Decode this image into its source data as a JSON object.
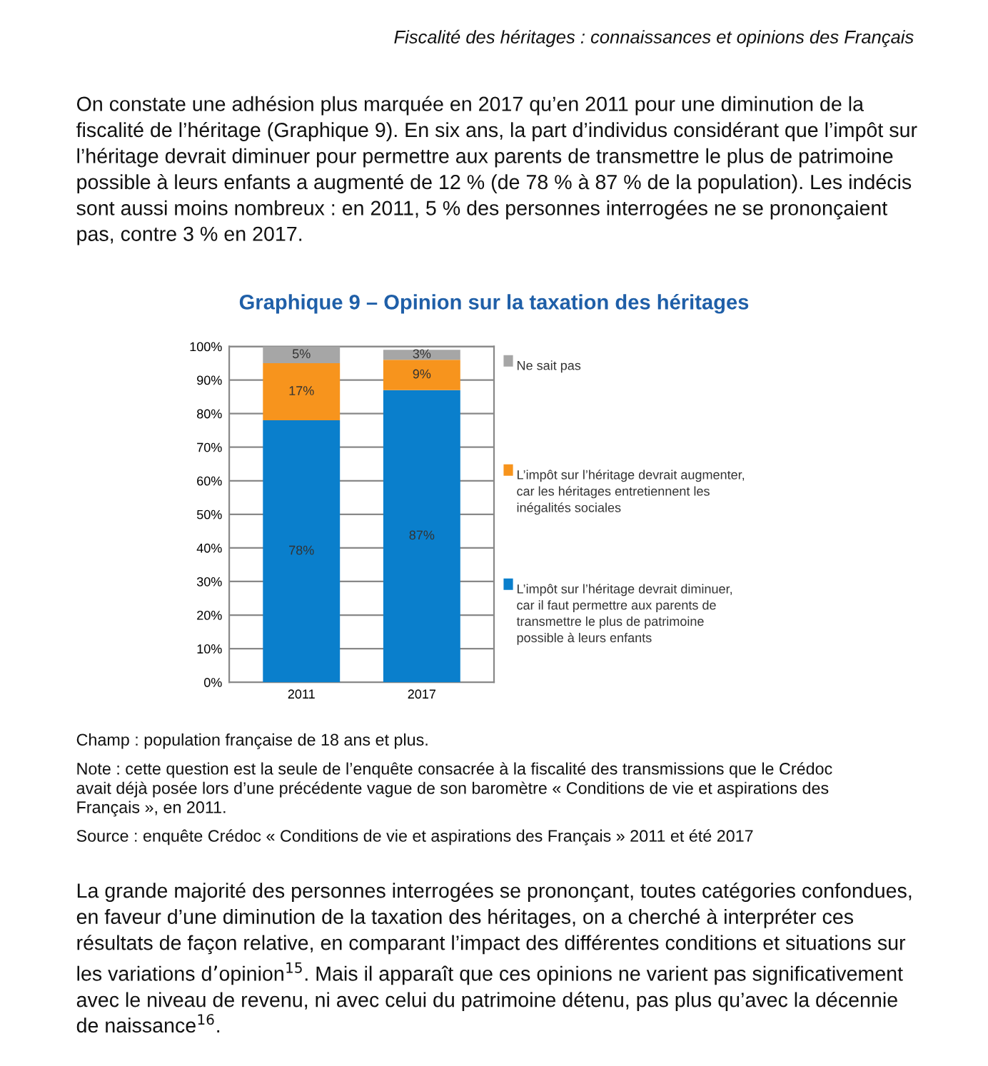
{
  "chart_data": {
    "type": "bar",
    "title": "Graphique 9 – Opinion sur la taxation des héritages",
    "categories": [
      "2011",
      "2017"
    ],
    "stacked": true,
    "series": [
      {
        "name": "L’impôt sur l’héritage devrait diminuer, car il faut permettre aux parents de transmettre le plus de patrimoine possible à leurs enfants",
        "color": "#0a7fcc",
        "values": [
          78,
          87
        ],
        "value_labels": [
          "78%",
          "87%"
        ]
      },
      {
        "name": "L’impôt sur l’héritage devrait augmenter, car les héritages entretiennent les inégalités sociales",
        "color": "#f7941d",
        "values": [
          17,
          9
        ],
        "value_labels": [
          "17%",
          "9%"
        ]
      },
      {
        "name": "Ne sait pas",
        "color": "#a6a6a6",
        "values": [
          5,
          3
        ],
        "value_labels": [
          "5%",
          "3%"
        ]
      }
    ],
    "ylim": [
      0,
      100
    ],
    "yticks": [
      {
        "value": 0,
        "label": "0%"
      },
      {
        "value": 10,
        "label": "10%"
      },
      {
        "value": 20,
        "label": "20%"
      },
      {
        "value": 30,
        "label": "30%"
      },
      {
        "value": 40,
        "label": "40%"
      },
      {
        "value": 50,
        "label": "50%"
      },
      {
        "value": 60,
        "label": "60%"
      },
      {
        "value": 70,
        "label": "70%"
      },
      {
        "value": 80,
        "label": "80%"
      },
      {
        "value": 90,
        "label": "90%"
      },
      {
        "value": 100,
        "label": "100%"
      }
    ],
    "grid": "y",
    "legend": "right",
    "annotations": [
      "Fiscalité des héritages : connaissances et opinions des Français",
      "On constate une adhésion plus marquée en 2017 qu’en 2011 pour une diminution de la\nfiscalité de l’héritage (Graphique 9). En six ans, la part d’individus considérant que l’impôt sur\nl’héritage devrait diminuer pour permettre aux parents de transmettre le plus de patrimoine\npossible à leurs enfants a augmenté de 12 % (de 78 % à 87 % de la population). Les indécis\nsont aussi moins nombreux : en 2011, 5 % des personnes interrogées ne se prononçaient\npas, contre 3 % en 2017.",
      "Champ : population française de 18 ans et plus.",
      "Note : cette question est la seule de l’enquête consacrée à la fiscalité des transmissions que le Crédoc\navait déjà posée lors d’une précédente vague de son baromètre « Conditions de vie et aspirations des\nFrançais », en 2011.",
      "Source : enquête Crédoc « Conditions de vie et aspirations des Français » 2011 et été 2017",
      "La grande majorité des personnes interrogées se prononçant, toutes catégories confondues,\nen faveur d’une diminution de la taxation des héritages, on a cherché à interpréter ces\nrésultats de façon relative, en comparant l’impact des différentes conditions et situations sur\nles variations d’opinion$^{15}$. Mais il apparaît que ces opinions ne varient pas significativement\navec le niveau de revenu, ni avec celui du patrimoine détenu, pas plus qu’avec la décennie\nde naissance$^{16}$."
    ]
  }
}
